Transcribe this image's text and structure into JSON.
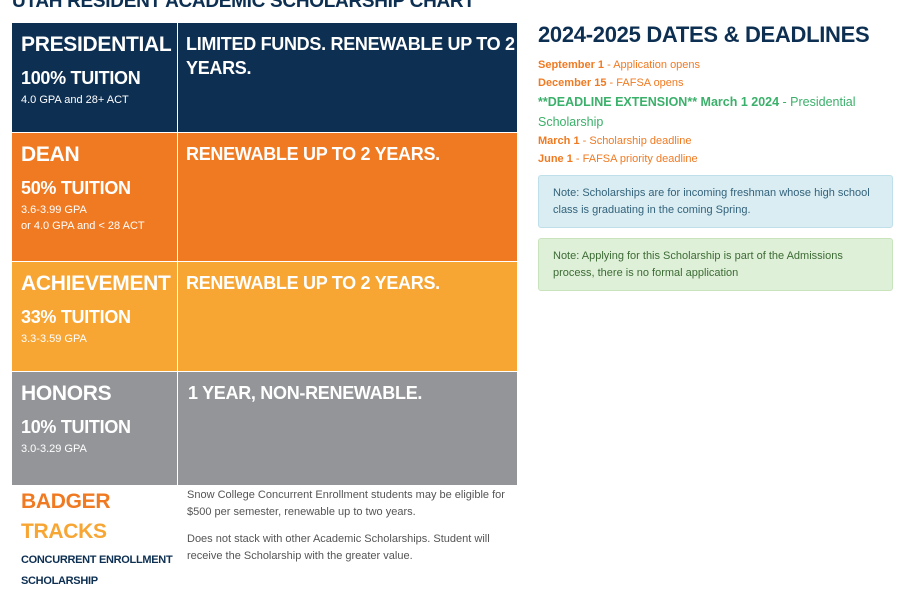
{
  "page": {
    "heading": "UTAH RESIDENT ACADEMIC SCHOLARSHIP CHART"
  },
  "tiers": [
    {
      "name": "PRESIDENTIAL",
      "award": "100% TUITION",
      "requirements": [
        "4.0 GPA and 28+ ACT"
      ],
      "note": "LIMITED FUNDS. RENEWABLE UP TO 2 YEARS.",
      "color": "#0d2f52"
    },
    {
      "name": "DEAN",
      "award": "50% TUITION",
      "requirements": [
        "3.6-3.99 GPA",
        "or 4.0 GPA and < 28 ACT"
      ],
      "note": "RENEWABLE UP TO 2 YEARS.",
      "color": "#f07a22"
    },
    {
      "name": "ACHIEVEMENT",
      "award": "33% TUITION",
      "requirements": [
        "3.3-3.59 GPA"
      ],
      "note": "RENEWABLE UP TO 2 YEARS.",
      "color": "#f7a533"
    },
    {
      "name": "HONORS",
      "award": "10% TUITION",
      "requirements": [
        "3.0-3.29 GPA"
      ],
      "note": "1 YEAR, NON-RENEWABLE.",
      "color": "#939598"
    }
  ],
  "badger": {
    "title_part1": "BADGER",
    "title_part2": " TRACKS",
    "subtitle_line1": "CONCURRENT ENROLLMENT",
    "subtitle_line2": "SCHOLARSHIP",
    "paragraph1": "Snow College Concurrent Enrollment students may be eligible for $500 per semester, renewable up to two years.",
    "paragraph2": "Does not stack with other Academic Scholarships. Student will receive the Scholarship with the greater value."
  },
  "deadlines": {
    "heading": "2024-2025 DATES & DEADLINES",
    "items": [
      {
        "date": "September 1",
        "text": " - Application opens"
      },
      {
        "date": "December 15",
        "text": " - FAFSA opens"
      },
      {
        "date": "**DEADLINE EXTENSION** March 1 2024",
        "text": " - Presidential Scholarship"
      },
      {
        "date": "March 1",
        "text": " - Scholarship deadline"
      },
      {
        "date": "June 1",
        "text": " - FAFSA priority deadline"
      }
    ]
  },
  "notes": {
    "blue": "Note: Scholarships are for incoming freshman whose high school class is graduating in the coming Spring.",
    "green": "Note: Applying for this Scholarship is part of the Admissions process, there is no formal application"
  },
  "colors": {
    "navy": "#0d2f52",
    "orange": "#f07a22",
    "light_orange": "#f7a533",
    "gray": "#939598",
    "green": "#3bb06a"
  }
}
